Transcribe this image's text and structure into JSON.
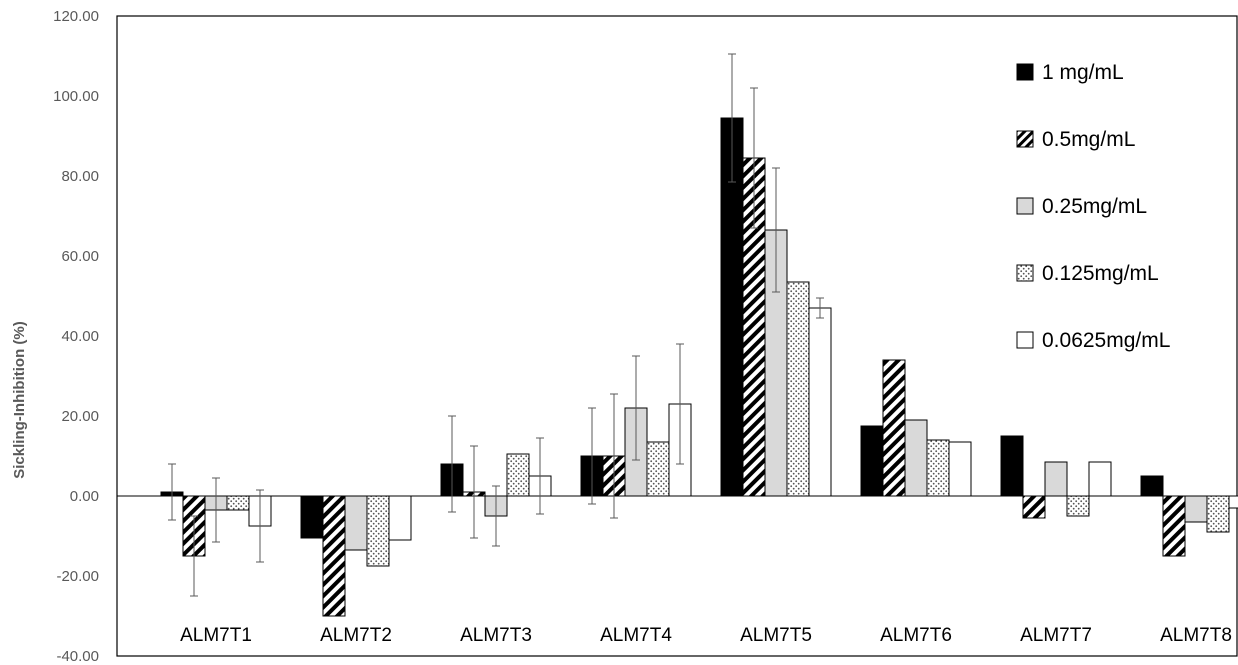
{
  "chart_data": {
    "type": "bar",
    "title": "",
    "xlabel": "",
    "ylabel": "Sickling-Inhibition (%)",
    "ylim": [
      -40,
      120
    ],
    "yticks": [
      "120.00",
      "100.00",
      "80.00",
      "60.00",
      "40.00",
      "20.00",
      "0.00",
      "-20.00",
      "-40.00"
    ],
    "ytick_values": [
      120,
      100,
      80,
      60,
      40,
      20,
      0,
      -20,
      -40
    ],
    "grid": false,
    "legend_position": "top-right",
    "categories": [
      "ALM7T1",
      "ALM7T2",
      "ALM7T3",
      "ALM7T4",
      "ALM7T5",
      "ALM7T6",
      "ALM7T7",
      "ALM7T8"
    ],
    "series": [
      {
        "name": "1 mg/mL",
        "pattern": "solid-black",
        "values": [
          1,
          -10.5,
          8,
          10,
          94.5,
          17.5,
          15,
          5
        ],
        "errors": [
          7,
          null,
          12,
          12,
          16,
          null,
          null,
          null
        ]
      },
      {
        "name": "0.5mg/mL",
        "pattern": "diagonal-hatch",
        "values": [
          -15,
          -30,
          1,
          10,
          84.5,
          34,
          -5.5,
          -15
        ],
        "errors": [
          10,
          null,
          11.5,
          15.5,
          17.5,
          null,
          null,
          null
        ]
      },
      {
        "name": "0.25mg/mL",
        "pattern": "solid-lightgray",
        "values": [
          -3.5,
          -13.5,
          -5,
          22,
          66.5,
          19,
          8.5,
          -6.5
        ],
        "errors": [
          8,
          null,
          7.5,
          13,
          15.5,
          null,
          null,
          null
        ]
      },
      {
        "name": "0.125mg/mL",
        "pattern": "dotted",
        "values": [
          -3.5,
          -17.5,
          10.5,
          13.5,
          53.5,
          14,
          -5,
          -9
        ],
        "errors": [
          null,
          null,
          null,
          null,
          null,
          null,
          null,
          null
        ]
      },
      {
        "name": "0.0625mg/mL",
        "pattern": "solid-white",
        "values": [
          -7.5,
          -11,
          5,
          23,
          47,
          13.5,
          8.5,
          -3
        ],
        "errors": [
          9,
          null,
          9.5,
          15,
          2.5,
          null,
          null,
          null
        ]
      }
    ],
    "colors": {
      "black": "#000000",
      "lightgray": "#d9d9d9",
      "white": "#ffffff",
      "axis": "#595959"
    }
  }
}
